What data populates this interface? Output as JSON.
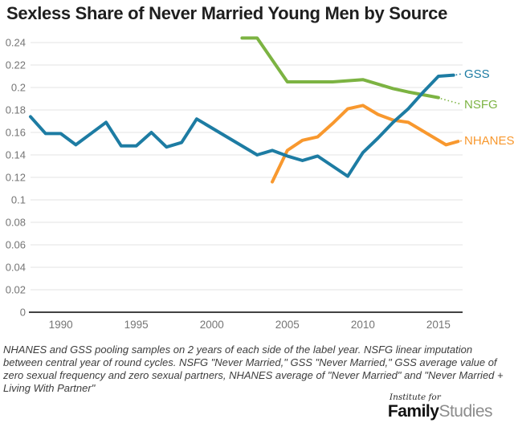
{
  "title": "Sexless Share of Never Married Young Men by Source",
  "chart_data": {
    "type": "line",
    "title": "Sexless Share of Never Married Young Men by Source",
    "xlabel": "",
    "ylabel": "",
    "grid": true,
    "legend_position": "right-of-line-ends",
    "x_range": [
      1988,
      2016.6
    ],
    "y_range": [
      0,
      0.24
    ],
    "x_ticks": [
      "1990",
      "1995",
      "2000",
      "2005",
      "2010",
      "2015"
    ],
    "y_tick_labels": [
      "0.24",
      "0.22",
      "0.2",
      "0.18",
      "0.16",
      "0.14",
      "0.12",
      "0.1",
      "0.08",
      "0.06",
      "0.04",
      "0.02",
      "0"
    ],
    "series": [
      {
        "name": "GSS",
        "color": "#1d7ca3",
        "points": [
          [
            1988,
            0.174
          ],
          [
            1989,
            0.159
          ],
          [
            1990,
            0.159
          ],
          [
            1991,
            0.149
          ],
          [
            1993,
            0.169
          ],
          [
            1994,
            0.148
          ],
          [
            1995,
            0.148
          ],
          [
            1996,
            0.16
          ],
          [
            1997,
            0.147
          ],
          [
            1998,
            0.151
          ],
          [
            1999,
            0.172
          ],
          [
            2003,
            0.14
          ],
          [
            2004,
            0.144
          ],
          [
            2005,
            0.139
          ],
          [
            2006,
            0.135
          ],
          [
            2007,
            0.139
          ],
          [
            2009,
            0.121
          ],
          [
            2010,
            0.142
          ],
          [
            2011,
            0.155
          ],
          [
            2012,
            0.169
          ],
          [
            2013,
            0.181
          ],
          [
            2014,
            0.196
          ],
          [
            2015,
            0.21
          ],
          [
            2016,
            0.211
          ]
        ]
      },
      {
        "name": "NSFG",
        "color": "#7cb342",
        "points": [
          [
            2002,
            0.244
          ],
          [
            2003,
            0.244
          ],
          [
            2005,
            0.205
          ],
          [
            2006,
            0.205
          ],
          [
            2008,
            0.205
          ],
          [
            2010,
            0.207
          ],
          [
            2012,
            0.199
          ],
          [
            2013,
            0.196
          ],
          [
            2015,
            0.191
          ]
        ]
      },
      {
        "name": "NHANES",
        "color": "#f8982e",
        "points": [
          [
            2004,
            0.116
          ],
          [
            2005,
            0.144
          ],
          [
            2006,
            0.153
          ],
          [
            2007,
            0.156
          ],
          [
            2008,
            0.168
          ],
          [
            2009,
            0.181
          ],
          [
            2010,
            0.184
          ],
          [
            2011,
            0.176
          ],
          [
            2012,
            0.171
          ],
          [
            2013,
            0.169
          ],
          [
            2015.5,
            0.149
          ],
          [
            2016.3,
            0.152
          ]
        ]
      }
    ]
  },
  "footnote": "NHANES and GSS pooling samples on 2 years of each side of the label year. NSFG linear imputation between central year of round cycles. NSFG \"Never Married,\" GSS \"Never Married,\" GSS average value of zero sexual frequency and zero sexual partners, NHANES average of \"Never Married\" and \"Never Married + Living With Partner\"",
  "branding": {
    "institute_for": "Institute for",
    "family": "Family",
    "studies": "Studies"
  }
}
